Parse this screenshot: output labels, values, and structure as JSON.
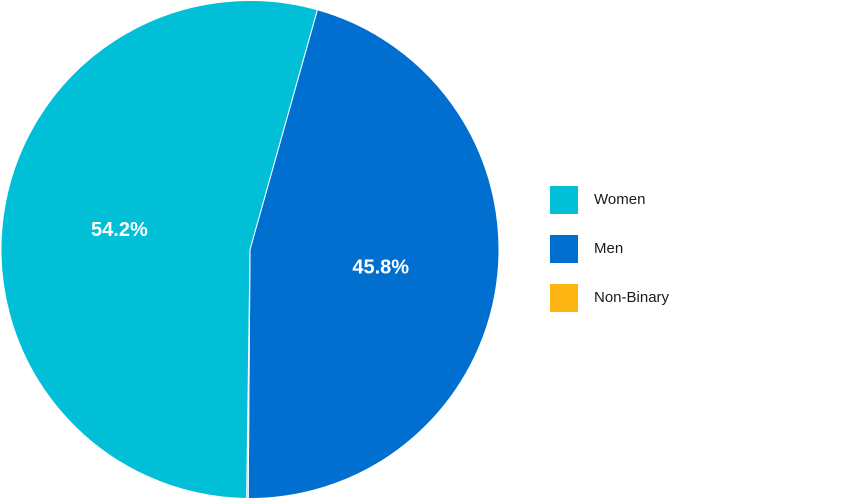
{
  "chart_data": {
    "type": "pie",
    "start_angle_deg": 15.7,
    "direction": "clockwise",
    "slices": [
      {
        "label": "Men",
        "value": 45.8,
        "display": "45.8%",
        "color": "#006fcf"
      },
      {
        "label": "Non-Binary",
        "value": 0.1,
        "display": "",
        "color": "#fdb514"
      },
      {
        "label": "Women",
        "value": 54.2,
        "display": "54.2%",
        "color": "#00bfd6"
      }
    ],
    "legend": {
      "placement": "right",
      "items": [
        {
          "label": "Women",
          "color": "#00bfd6"
        },
        {
          "label": "Men",
          "color": "#006fcf"
        },
        {
          "label": "Non-Binary",
          "color": "#fdb514"
        }
      ]
    }
  }
}
